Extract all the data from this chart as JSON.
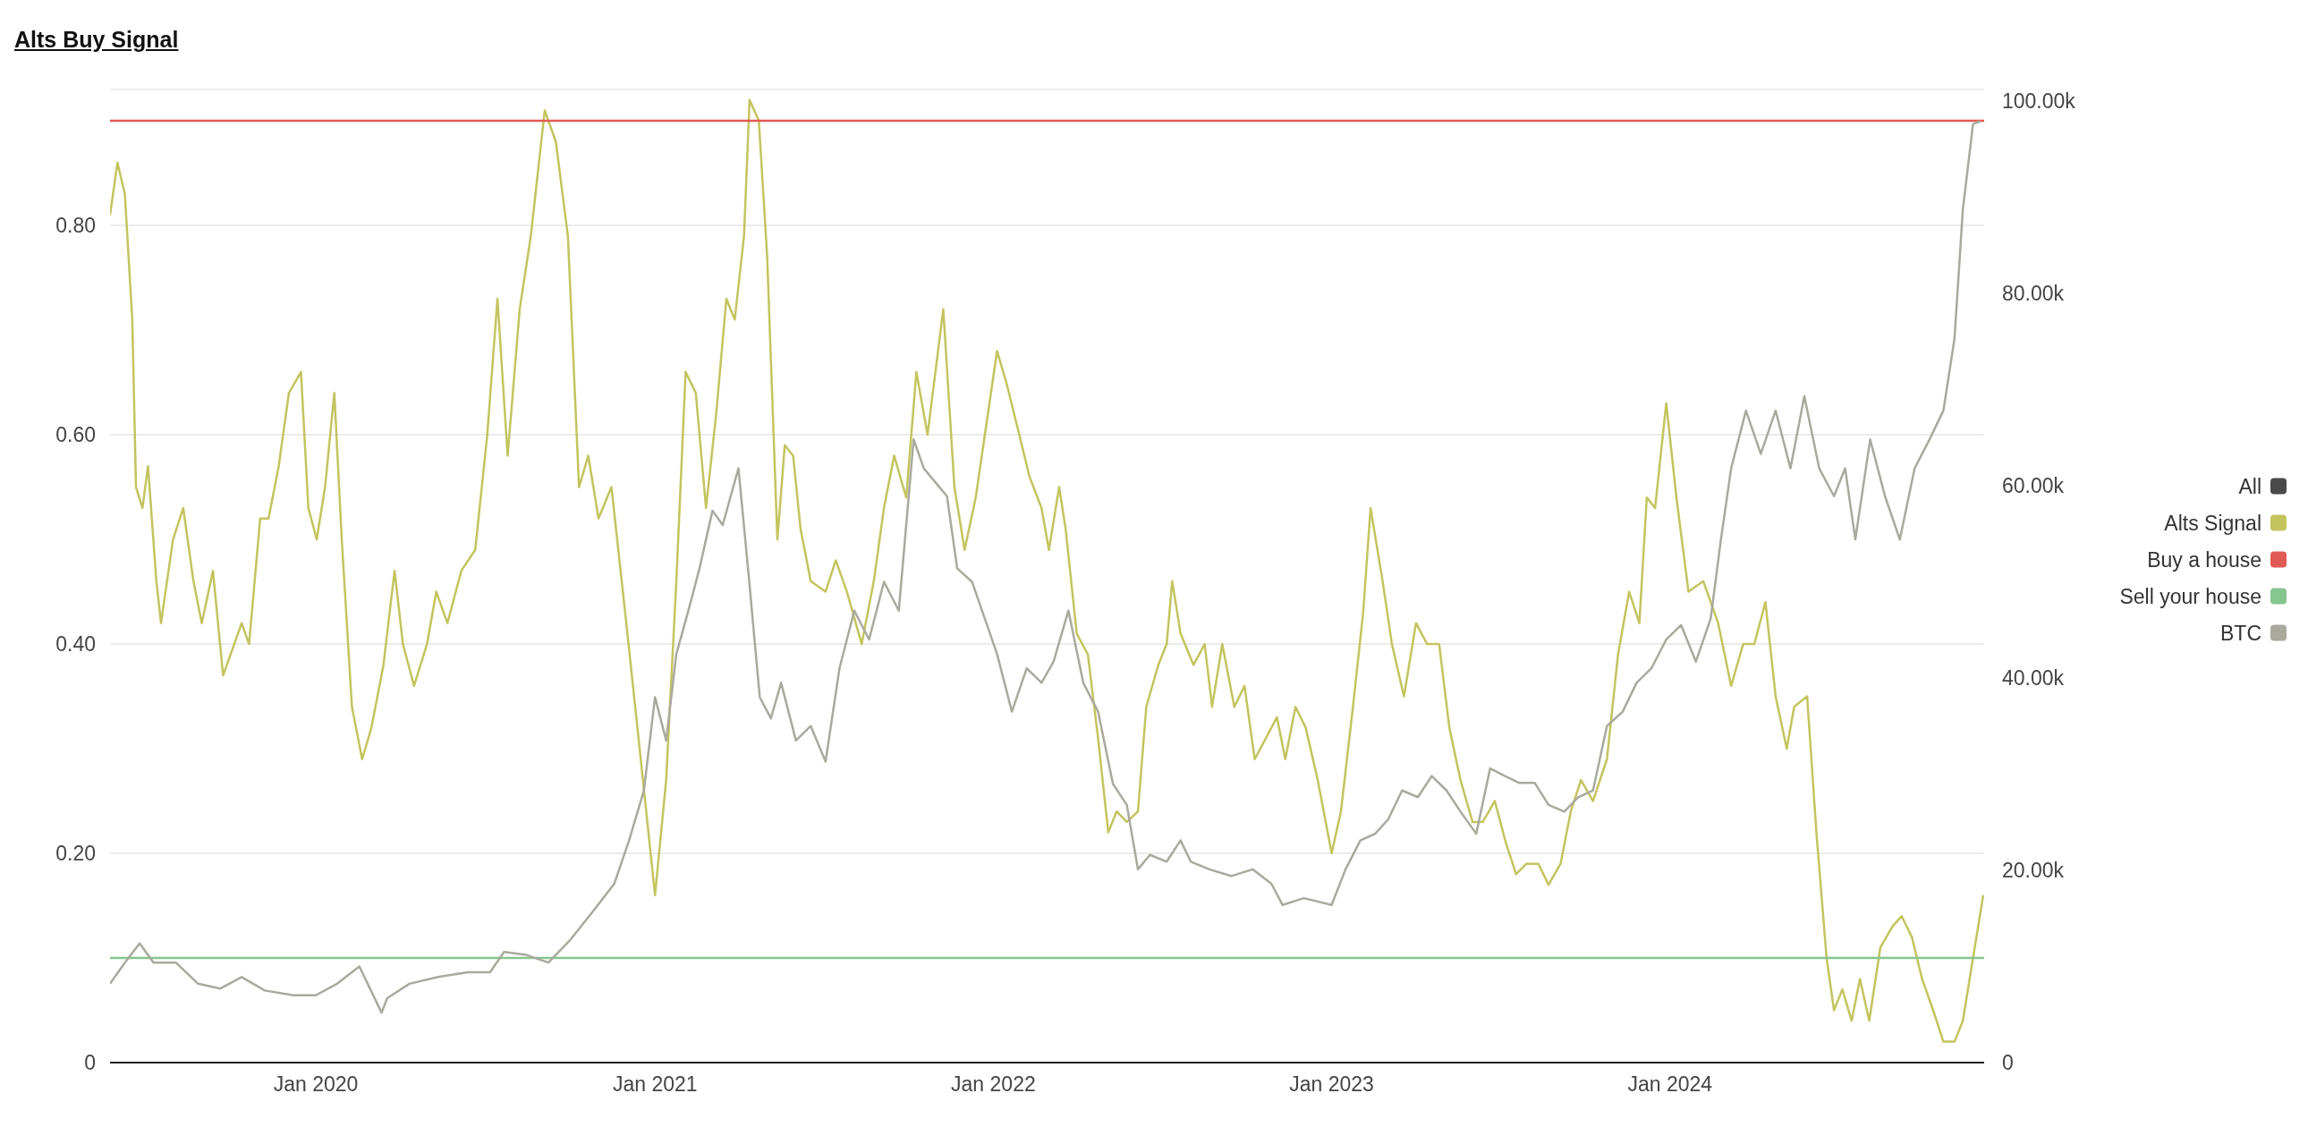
{
  "chart_data": {
    "type": "line",
    "title": "Alts Buy Signal",
    "xlim": [
      "2019-05-24",
      "2024-12-05"
    ],
    "xticks": [
      {
        "value": "2020-01-01",
        "label": "Jan 2020"
      },
      {
        "value": "2021-01-01",
        "label": "Jan 2021"
      },
      {
        "value": "2022-01-01",
        "label": "Jan 2022"
      },
      {
        "value": "2023-01-01",
        "label": "Jan 2023"
      },
      {
        "value": "2024-01-01",
        "label": "Jan 2024"
      }
    ],
    "ylim": [
      0,
      0.93
    ],
    "yticks": [
      0,
      {
        "value": 0.2,
        "label": "0.20"
      },
      {
        "value": 0.4,
        "label": "0.40"
      },
      {
        "value": 0.6,
        "label": "0.60"
      },
      {
        "value": 0.8,
        "label": "0.80"
      }
    ],
    "y2lim": [
      0,
      101.2
    ],
    "y2ticks": [
      0,
      {
        "value": 20,
        "label": "20.00k"
      },
      {
        "value": 40,
        "label": "40.00k"
      },
      {
        "value": 60,
        "label": "60.00k"
      },
      {
        "value": 80,
        "label": "80.00k"
      },
      {
        "value": 100,
        "label": "100.00k"
      }
    ],
    "grid": "y",
    "legend": "right",
    "line_style": "solid",
    "series": [
      {
        "name": "All",
        "color": "#4a4a4a"
      },
      {
        "name": "Alts Signal",
        "color": "#c3c45e",
        "x": [
          "2019-05-24",
          "2019-06-01",
          "2019-06-09",
          "2019-06-17",
          "2019-06-21",
          "2019-06-28",
          "2019-07-04",
          "2019-07-13",
          "2019-07-18",
          "2019-07-31",
          "2019-08-11",
          "2019-08-22",
          "2019-08-31",
          "2019-09-12",
          "2019-09-23",
          "2019-10-13",
          "2019-10-21",
          "2019-11-02",
          "2019-11-11",
          "2019-11-22",
          "2019-12-03",
          "2019-12-16",
          "2019-12-24",
          "2020-01-02",
          "2020-01-11",
          "2020-01-21",
          "2020-01-29",
          "2020-02-09",
          "2020-02-20",
          "2020-03-01",
          "2020-03-14",
          "2020-03-26",
          "2020-04-04",
          "2020-04-16",
          "2020-04-30",
          "2020-05-10",
          "2020-05-22",
          "2020-06-06",
          "2020-06-21",
          "2020-07-04",
          "2020-07-15",
          "2020-07-26",
          "2020-08-08",
          "2020-08-20",
          "2020-09-04",
          "2020-09-16",
          "2020-09-29",
          "2020-10-11",
          "2020-10-21",
          "2020-11-01",
          "2020-11-15",
          "2020-12-01",
          "2020-12-13",
          "2021-01-01",
          "2021-01-13",
          "2021-01-24",
          "2021-02-03",
          "2021-02-14",
          "2021-02-25",
          "2021-03-08",
          "2021-03-19",
          "2021-03-28",
          "2021-04-07",
          "2021-04-13",
          "2021-04-23",
          "2021-05-02",
          "2021-05-13",
          "2021-05-21",
          "2021-05-30",
          "2021-06-07",
          "2021-06-18",
          "2021-07-04",
          "2021-07-15",
          "2021-07-27",
          "2021-08-12",
          "2021-08-25",
          "2021-09-05",
          "2021-09-16",
          "2021-09-29",
          "2021-10-10",
          "2021-10-22",
          "2021-11-08",
          "2021-11-20",
          "2021-12-01",
          "2021-12-13",
          "2022-01-05",
          "2022-01-15",
          "2022-01-29",
          "2022-02-09",
          "2022-02-22",
          "2022-03-02",
          "2022-03-13",
          "2022-03-20",
          "2022-04-01",
          "2022-04-13",
          "2022-04-24",
          "2022-05-05",
          "2022-05-14",
          "2022-05-25",
          "2022-06-06",
          "2022-06-15",
          "2022-06-28",
          "2022-07-07",
          "2022-07-13",
          "2022-07-22",
          "2022-08-05",
          "2022-08-17",
          "2022-08-25",
          "2022-09-05",
          "2022-09-18",
          "2022-09-29",
          "2022-10-10",
          "2022-10-22",
          "2022-11-03",
          "2022-11-12",
          "2022-11-23",
          "2022-12-04",
          "2022-12-17",
          "2023-01-01",
          "2023-01-11",
          "2023-01-24",
          "2023-02-04",
          "2023-02-12",
          "2023-02-25",
          "2023-03-07",
          "2023-03-20",
          "2023-04-02",
          "2023-04-14",
          "2023-04-27",
          "2023-05-08",
          "2023-05-20",
          "2023-06-02",
          "2023-06-13",
          "2023-06-26",
          "2023-07-08",
          "2023-07-19",
          "2023-07-30",
          "2023-08-12",
          "2023-08-23",
          "2023-09-05",
          "2023-09-16",
          "2023-09-27",
          "2023-10-10",
          "2023-10-25",
          "2023-11-06",
          "2023-11-18",
          "2023-11-29",
          "2023-12-07",
          "2023-12-16",
          "2023-12-28",
          "2024-01-08",
          "2024-01-21",
          "2024-02-06",
          "2024-02-22",
          "2024-03-07",
          "2024-03-20",
          "2024-04-01",
          "2024-04-13",
          "2024-04-24",
          "2024-05-06",
          "2024-05-14",
          "2024-05-28",
          "2024-06-07",
          "2024-06-18",
          "2024-06-26",
          "2024-07-05",
          "2024-07-15",
          "2024-07-24",
          "2024-08-03",
          "2024-08-15",
          "2024-08-28",
          "2024-09-07",
          "2024-09-18",
          "2024-09-29",
          "2024-10-11",
          "2024-10-22",
          "2024-11-03",
          "2024-11-12",
          "2024-11-23",
          "2024-12-04"
        ],
        "values": [
          0.81,
          0.86,
          0.83,
          0.71,
          0.55,
          0.53,
          0.57,
          0.46,
          0.42,
          0.5,
          0.53,
          0.46,
          0.42,
          0.47,
          0.37,
          0.42,
          0.4,
          0.52,
          0.52,
          0.57,
          0.64,
          0.66,
          0.53,
          0.5,
          0.55,
          0.64,
          0.5,
          0.34,
          0.29,
          0.32,
          0.38,
          0.47,
          0.4,
          0.36,
          0.4,
          0.45,
          0.42,
          0.47,
          0.49,
          0.6,
          0.73,
          0.58,
          0.72,
          0.79,
          0.91,
          0.88,
          0.79,
          0.55,
          0.58,
          0.52,
          0.55,
          0.42,
          0.32,
          0.16,
          0.27,
          0.46,
          0.66,
          0.64,
          0.53,
          0.62,
          0.73,
          0.71,
          0.79,
          0.92,
          0.9,
          0.77,
          0.5,
          0.59,
          0.58,
          0.51,
          0.46,
          0.45,
          0.48,
          0.45,
          0.4,
          0.46,
          0.53,
          0.58,
          0.54,
          0.66,
          0.6,
          0.72,
          0.55,
          0.49,
          0.54,
          0.68,
          0.65,
          0.6,
          0.56,
          0.53,
          0.49,
          0.55,
          0.51,
          0.41,
          0.39,
          0.31,
          0.22,
          0.24,
          0.23,
          0.24,
          0.34,
          0.38,
          0.4,
          0.46,
          0.41,
          0.38,
          0.4,
          0.34,
          0.4,
          0.34,
          0.36,
          0.29,
          0.31,
          0.33,
          0.29,
          0.34,
          0.32,
          0.27,
          0.2,
          0.24,
          0.34,
          0.43,
          0.53,
          0.46,
          0.4,
          0.35,
          0.42,
          0.4,
          0.4,
          0.32,
          0.27,
          0.23,
          0.23,
          0.25,
          0.21,
          0.18,
          0.19,
          0.19,
          0.17,
          0.19,
          0.24,
          0.27,
          0.25,
          0.29,
          0.39,
          0.45,
          0.42,
          0.54,
          0.53,
          0.63,
          0.54,
          0.45,
          0.46,
          0.42,
          0.36,
          0.4,
          0.4,
          0.44,
          0.35,
          0.3,
          0.34,
          0.35,
          0.22,
          0.1,
          0.05,
          0.07,
          0.04,
          0.08,
          0.04,
          0.11,
          0.13,
          0.14,
          0.12,
          0.08,
          0.05,
          0.02,
          0.02,
          0.04,
          0.1,
          0.16
        ]
      },
      {
        "name": "Buy a house",
        "color": "#e05a55",
        "x": [
          "2019-05-24",
          "2024-12-05"
        ],
        "values": [
          0.9,
          0.9
        ]
      },
      {
        "name": "Sell your house",
        "color": "#86c68f",
        "x": [
          "2019-05-24",
          "2024-12-05"
        ],
        "values": [
          0.1,
          0.1
        ]
      },
      {
        "name": "BTC",
        "color": "#aaa99e",
        "axis": "y2",
        "x": [
          "2019-05-24",
          "2019-06-09",
          "2019-06-25",
          "2019-07-10",
          "2019-08-03",
          "2019-08-27",
          "2019-09-20",
          "2019-10-13",
          "2019-11-07",
          "2019-12-08",
          "2020-01-01",
          "2020-01-24",
          "2020-02-17",
          "2020-03-12",
          "2020-03-18",
          "2020-04-11",
          "2020-05-12",
          "2020-06-13",
          "2020-07-07",
          "2020-07-22",
          "2020-08-15",
          "2020-09-08",
          "2020-10-01",
          "2020-10-25",
          "2020-11-18",
          "2020-12-04",
          "2020-12-20",
          "2021-01-01",
          "2021-01-13",
          "2021-01-24",
          "2021-02-06",
          "2021-02-18",
          "2021-03-04",
          "2021-03-15",
          "2021-04-01",
          "2021-04-12",
          "2021-04-24",
          "2021-05-06",
          "2021-05-17",
          "2021-06-02",
          "2021-06-18",
          "2021-07-04",
          "2021-07-19",
          "2021-08-04",
          "2021-08-20",
          "2021-09-05",
          "2021-09-21",
          "2021-10-07",
          "2021-10-18",
          "2021-10-30",
          "2021-11-12",
          "2021-11-23",
          "2021-12-09",
          "2022-01-05",
          "2022-01-21",
          "2022-02-06",
          "2022-02-22",
          "2022-03-07",
          "2022-03-23",
          "2022-04-08",
          "2022-04-24",
          "2022-05-10",
          "2022-05-25",
          "2022-06-06",
          "2022-06-19",
          "2022-07-07",
          "2022-07-22",
          "2022-08-02",
          "2022-08-22",
          "2022-09-15",
          "2022-10-08",
          "2022-10-28",
          "2022-11-09",
          "2022-12-02",
          "2023-01-01",
          "2023-01-16",
          "2023-02-01",
          "2023-02-17",
          "2023-03-03",
          "2023-03-18",
          "2023-04-04",
          "2023-04-19",
          "2023-05-05",
          "2023-05-20",
          "2023-06-06",
          "2023-06-21",
          "2023-07-07",
          "2023-07-22",
          "2023-08-08",
          "2023-08-23",
          "2023-09-09",
          "2023-09-24",
          "2023-10-10",
          "2023-10-25",
          "2023-11-11",
          "2023-11-26",
          "2023-12-12",
          "2023-12-28",
          "2024-01-13",
          "2024-01-29",
          "2024-02-14",
          "2024-02-25",
          "2024-03-07",
          "2024-03-23",
          "2024-04-08",
          "2024-04-24",
          "2024-05-10",
          "2024-05-25",
          "2024-06-10",
          "2024-06-26",
          "2024-07-08",
          "2024-07-19",
          "2024-08-04",
          "2024-08-20",
          "2024-09-05",
          "2024-09-21",
          "2024-10-07",
          "2024-10-22",
          "2024-11-03",
          "2024-11-12",
          "2024-11-23",
          "2024-12-01"
        ],
        "values": [
          8.2,
          10.4,
          12.4,
          10.4,
          10.4,
          8.2,
          7.7,
          8.9,
          7.5,
          7.0,
          7.0,
          8.2,
          10.0,
          5.2,
          6.7,
          8.2,
          8.9,
          9.4,
          9.4,
          11.5,
          11.2,
          10.4,
          12.7,
          15.6,
          18.6,
          23.1,
          28.3,
          38,
          33.5,
          42.5,
          47,
          51.4,
          57.4,
          55.9,
          61.8,
          50.7,
          38,
          35.8,
          39.5,
          33.5,
          35,
          31.3,
          41,
          47,
          44,
          50,
          47,
          64.8,
          61.8,
          60.4,
          58.9,
          51.4,
          50,
          42.5,
          36.5,
          41,
          39.5,
          41.7,
          47,
          39.5,
          36.5,
          29,
          26.8,
          20.1,
          21.6,
          20.9,
          23.1,
          20.9,
          20.1,
          19.4,
          20.1,
          18.6,
          16.4,
          17.1,
          16.4,
          20.1,
          23.1,
          23.8,
          25.3,
          28.3,
          27.6,
          29.8,
          28.3,
          26.1,
          23.8,
          30.6,
          29.8,
          29.1,
          29.1,
          26.8,
          26.1,
          27.6,
          28.3,
          35,
          36.5,
          39.5,
          41,
          44,
          45.5,
          41.7,
          46.2,
          54.4,
          61.8,
          67.8,
          63.3,
          67.8,
          61.8,
          69.3,
          61.8,
          58.9,
          61.8,
          54.4,
          64.8,
          58.9,
          54.4,
          61.8,
          64.8,
          67.8,
          75.3,
          88.7,
          97.6,
          97.9
        ]
      }
    ]
  }
}
